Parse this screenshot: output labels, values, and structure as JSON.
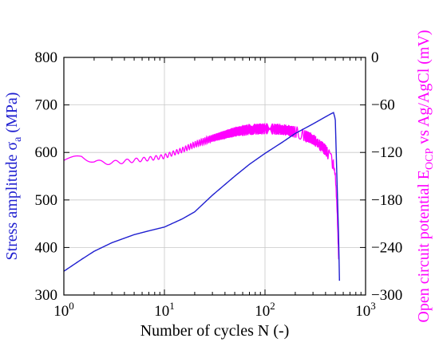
{
  "chart_data": {
    "type": "line",
    "xscale": "log",
    "xlim": [
      1,
      1000
    ],
    "xlabel": "Number of cycles N (-)",
    "x_ticks": [
      {
        "value": 1,
        "base": "10",
        "exp": "0"
      },
      {
        "value": 10,
        "base": "10",
        "exp": "1"
      },
      {
        "value": 100,
        "base": "10",
        "exp": "2"
      },
      {
        "value": 1000,
        "base": "10",
        "exp": "3"
      }
    ],
    "y_left": {
      "label_main": "Stress amplitude σ",
      "label_sub": "a",
      "label_end": " (MPa)",
      "lim": [
        300,
        800
      ],
      "ticks": [
        "300",
        "400",
        "500",
        "600",
        "700",
        "800"
      ],
      "color": "#1f1fd0"
    },
    "y_right": {
      "label_main": "Open circuit potential E",
      "label_sub": "OCP",
      "label_end": " vs Ag/AgCl (mV)",
      "lim": [
        -300,
        0
      ],
      "ticks": [
        "0",
        "−60",
        "−120",
        "−180",
        "−240",
        "−300"
      ],
      "tick_values": [
        0,
        -60,
        -120,
        -180,
        -240,
        -300
      ],
      "color": "#ff00ff"
    },
    "grid": true,
    "series": [
      {
        "axis": "left",
        "color": "#1f1fd0",
        "x": [
          1,
          1.5,
          2,
          3,
          5,
          7,
          10,
          15,
          20,
          30,
          50,
          70,
          100,
          150,
          200,
          300,
          400,
          450,
          480,
          500,
          520,
          540,
          550
        ],
        "y": [
          350,
          375,
          392,
          410,
          427,
          435,
          443,
          460,
          475,
          510,
          550,
          575,
          598,
          622,
          640,
          660,
          675,
          681,
          684,
          670,
          540,
          420,
          330
        ]
      },
      {
        "axis": "right",
        "color": "#ff00ff",
        "oscillating": true,
        "x": [
          1,
          1.2,
          1.5,
          2,
          3,
          5,
          7,
          10,
          15,
          20,
          30,
          50,
          70,
          100,
          150,
          200,
          300,
          400,
          450,
          480,
          500,
          520,
          540
        ],
        "y": [
          -130,
          -128,
          -125,
          -132,
          -133,
          -130,
          -128,
          -125,
          -117,
          -110,
          -102,
          -94,
          -91,
          -90,
          -91,
          -94,
          -103,
          -117,
          -127,
          -137,
          -148,
          -190,
          -255
        ]
      }
    ]
  }
}
